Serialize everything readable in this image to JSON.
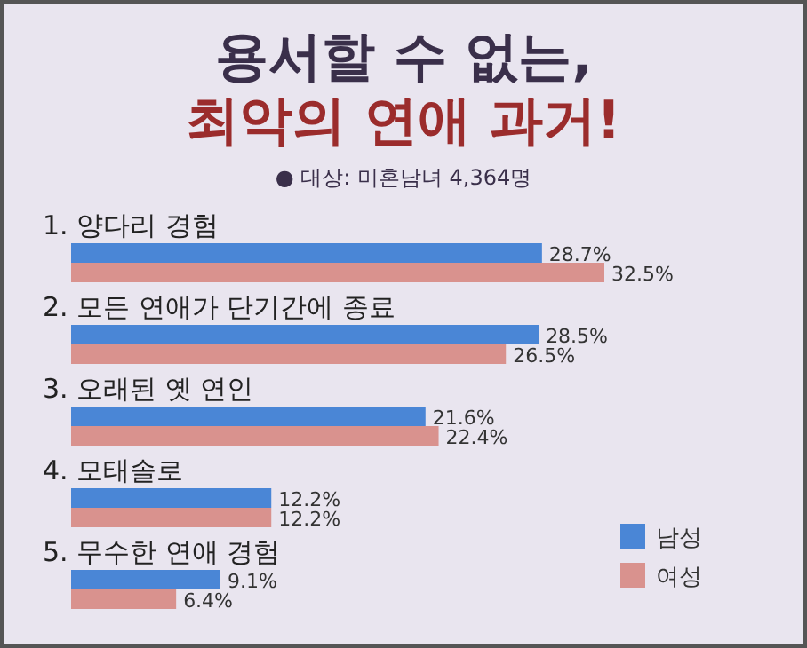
{
  "chart_data": {
    "type": "bar",
    "orientation": "horizontal",
    "title": "용서할 수 없는,\n최악의 연애 과거!",
    "annotations": [
      "● 대상: 미혼남녀 4,364명"
    ],
    "categories": [
      "1. 양다리 경험",
      "2. 모든 연애가 단기간에 종료",
      "3. 오래된 옛 연인",
      "4. 모태솔로",
      "5. 무수한 연애 경험"
    ],
    "series": [
      {
        "name": "남성",
        "color": "#4a86d6",
        "values": [
          28.7,
          28.5,
          21.6,
          12.2,
          9.1
        ],
        "value_labels": [
          "28.7%",
          "28.5%",
          "21.6%",
          "12.2%",
          "9.1%"
        ]
      },
      {
        "name": "여성",
        "color": "#d9928e",
        "values": [
          32.5,
          26.5,
          22.4,
          12.2,
          6.4
        ],
        "value_labels": [
          "32.5%",
          "26.5%",
          "22.4%",
          "12.2%",
          "6.4%"
        ]
      }
    ],
    "legend": "bottom right"
  }
}
